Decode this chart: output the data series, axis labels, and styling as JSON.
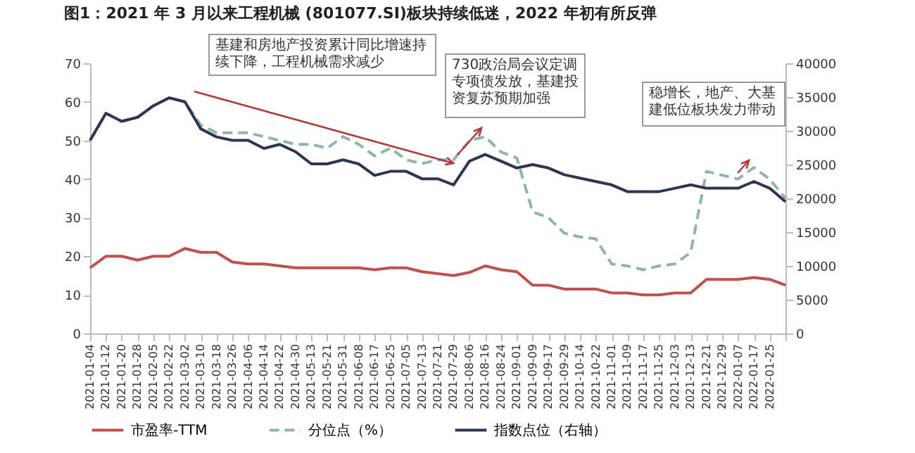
{
  "chart_data": {
    "type": "line",
    "title": "图1：2021 年 3 月以来工程机械 (801077.SI)板块持续低迷，2022 年初有所反弹",
    "categories": [
      "2021-01-04",
      "2021-01-12",
      "2021-01-20",
      "2021-01-28",
      "2021-02-05",
      "2021-02-22",
      "2021-03-02",
      "2021-03-10",
      "2021-03-18",
      "2021-03-26",
      "2021-04-06",
      "2021-04-14",
      "2021-04-22",
      "2021-04-30",
      "2021-05-13",
      "2021-05-21",
      "2021-05-31",
      "2021-06-08",
      "2021-06-17",
      "2021-06-25",
      "2021-07-05",
      "2021-07-13",
      "2021-07-21",
      "2021-07-29",
      "2021-08-06",
      "2021-08-16",
      "2021-08-24",
      "2021-09-01",
      "2021-09-09",
      "2021-09-17",
      "2021-09-29",
      "2021-10-14",
      "2021-10-22",
      "2021-11-01",
      "2021-11-09",
      "2021-11-17",
      "2021-11-25",
      "2021-12-03",
      "2021-12-13",
      "2021-12-21",
      "2021-12-29",
      "2022-01-07",
      "2022-01-17",
      "2022-01-25",
      null
    ],
    "series": [
      {
        "name": "市盈率-TTM",
        "color": "#c0504d",
        "values": [
          17,
          20,
          20,
          19,
          20,
          20,
          22,
          21,
          21,
          18.5,
          18,
          18,
          17.5,
          17,
          17,
          17,
          17,
          17,
          16.5,
          17,
          17,
          16,
          15.5,
          15,
          15.8,
          17.5,
          16.5,
          16,
          12.5,
          12.5,
          11.5,
          11.5,
          11.5,
          10.5,
          10.5,
          10,
          10,
          10.5,
          10.5,
          14,
          14,
          14,
          14.5,
          14,
          12.5
        ]
      },
      {
        "name": "分位点（%）",
        "color": "#8fb4b0",
        "line_style": "dashed",
        "values": [
          50,
          57,
          55,
          56,
          59,
          61,
          60,
          54,
          52,
          52,
          52,
          51,
          50,
          49,
          49,
          48,
          51,
          49,
          46,
          48,
          45,
          44,
          45,
          45,
          50,
          51,
          47,
          45.5,
          31.5,
          30,
          26,
          25,
          24.5,
          18,
          17.5,
          16.5,
          17.5,
          18,
          21,
          42,
          41,
          40,
          43,
          40,
          35
        ]
      },
      {
        "name": "指数点位（右轴）",
        "color": "#2e3550",
        "axis": "y2",
        "values": [
          28600,
          32600,
          31400,
          32000,
          33700,
          34900,
          34300,
          30300,
          29100,
          28600,
          28600,
          27400,
          28000,
          26900,
          25100,
          25100,
          25700,
          25100,
          23400,
          24000,
          24000,
          22900,
          22900,
          22000,
          25500,
          26500,
          25500,
          24500,
          25000,
          24500,
          23500,
          23000,
          22500,
          22000,
          21000,
          21000,
          21000,
          21500,
          22000,
          21500,
          21500,
          21500,
          22500,
          21500,
          19500
        ]
      }
    ],
    "ylim": [
      0,
      70
    ],
    "yticks": [
      0,
      10,
      20,
      30,
      40,
      50,
      60,
      70
    ],
    "y2lim": [
      0,
      40000
    ],
    "y2ticks": [
      0,
      5000,
      10000,
      15000,
      20000,
      25000,
      30000,
      35000,
      40000
    ],
    "legend": "bottom",
    "annotations": [
      "基建和房地产投资累计同比增速持续下降，工程机械需求减少",
      "730政治局会议定调专项债发放，基建投资复苏预期加强",
      "稳增长，地产、大基建低位板块发力带动"
    ]
  }
}
